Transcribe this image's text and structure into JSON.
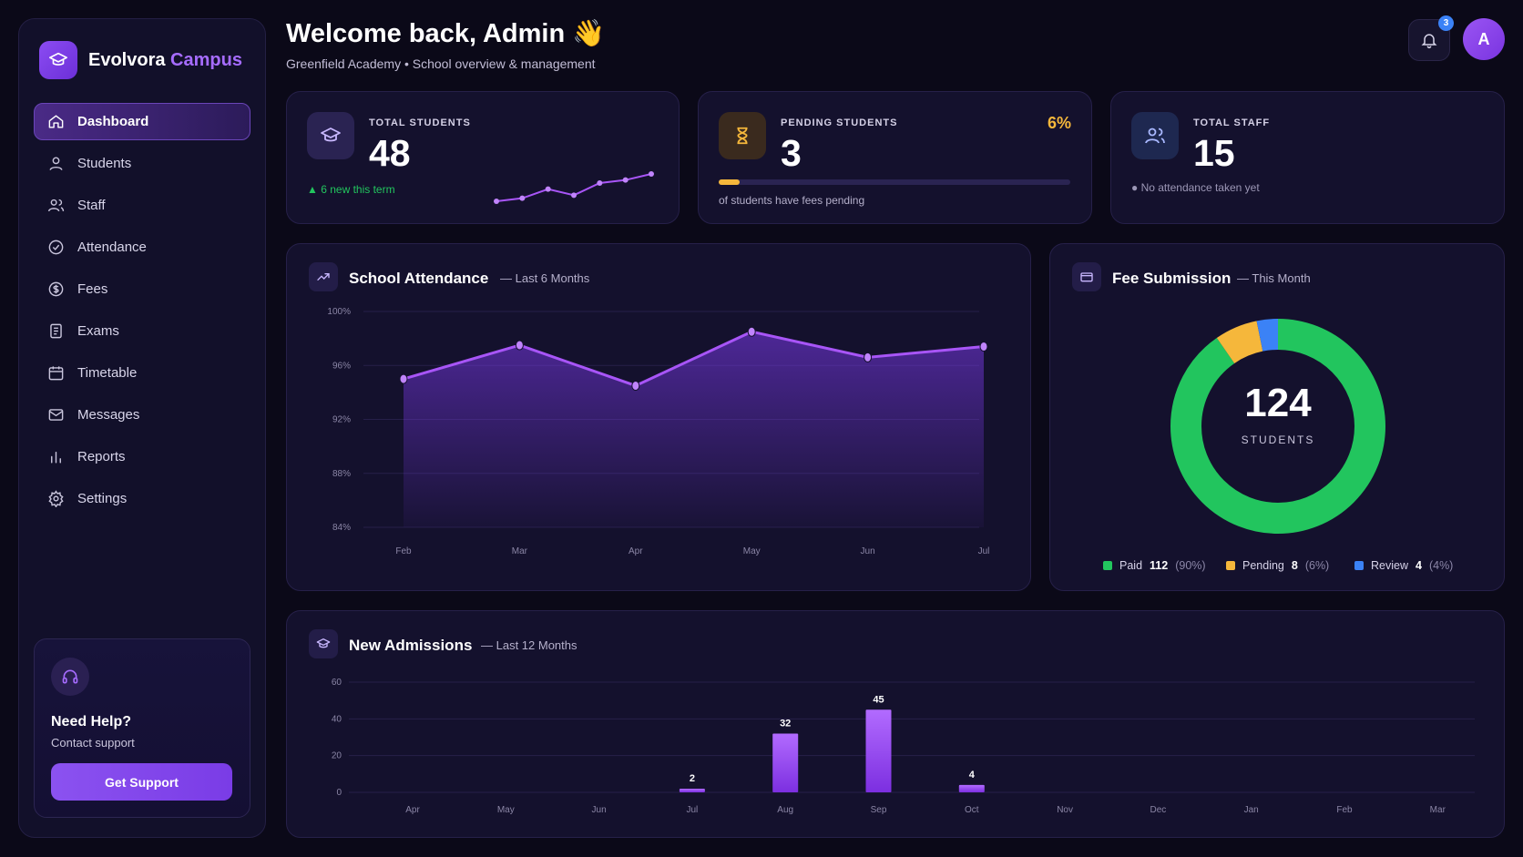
{
  "brand": {
    "name": "Evolvora",
    "accent": "Campus"
  },
  "sidebar": {
    "items": [
      {
        "label": "Dashboard",
        "icon": "home-icon",
        "active": true
      },
      {
        "label": "Students",
        "icon": "user-icon"
      },
      {
        "label": "Staff",
        "icon": "users-icon"
      },
      {
        "label": "Attendance",
        "icon": "check-circle-icon"
      },
      {
        "label": "Fees",
        "icon": "dollar-icon"
      },
      {
        "label": "Exams",
        "icon": "document-icon"
      },
      {
        "label": "Timetable",
        "icon": "calendar-icon"
      },
      {
        "label": "Messages",
        "icon": "mail-icon"
      },
      {
        "label": "Reports",
        "icon": "bar-chart-icon"
      },
      {
        "label": "Settings",
        "icon": "gear-icon"
      }
    ],
    "help": {
      "title": "Need Help?",
      "subtitle": "Contact support",
      "button": "Get Support"
    }
  },
  "header": {
    "welcome": "Welcome back, Admin",
    "emoji": "👋",
    "subtitle": "Greenfield Academy • School overview & management",
    "notifications": "3",
    "avatar": "A"
  },
  "stats": {
    "students": {
      "label": "TOTAL STUDENTS",
      "value": "48",
      "note": "▲ 6 new this term",
      "trend": [
        2,
        3,
        6,
        4,
        8,
        9,
        11
      ]
    },
    "pending": {
      "label": "PENDING STUDENTS",
      "value": "3",
      "percent": "6%",
      "progress": 0.06,
      "note": "of students have fees pending"
    },
    "staff": {
      "label": "TOTAL STAFF",
      "value": "15",
      "note": "● No attendance taken yet"
    }
  },
  "attendance": {
    "title": "School Attendance",
    "subtitle": "— Last 6 Months",
    "chart_data": {
      "type": "area",
      "x": [
        "Feb",
        "Mar",
        "Apr",
        "May",
        "Jun",
        "Jul"
      ],
      "y": [
        95.0,
        97.5,
        94.5,
        98.5,
        96.6,
        97.4
      ],
      "ylim": [
        84,
        100
      ],
      "yticks": [
        "100%",
        "96%",
        "92%",
        "88%",
        "84%"
      ],
      "color": "#a855f7"
    }
  },
  "fees": {
    "title": "Fee Submission",
    "subtitle": "— This Month",
    "total": "124",
    "total_label": "STUDENTS",
    "chart_data": {
      "type": "pie",
      "labels": [
        "Paid",
        "Pending",
        "Review"
      ],
      "values": [
        112,
        8,
        4
      ],
      "colors": [
        "#22c55e",
        "#f5b73b",
        "#3b82f6"
      ],
      "percents": [
        "(90%)",
        "(6%)",
        "(4%)"
      ]
    }
  },
  "admissions": {
    "title": "New Admissions",
    "subtitle": "— Last 12 Months",
    "chart_data": {
      "type": "bar",
      "categories": [
        "Apr",
        "May",
        "Jun",
        "Jul",
        "Aug",
        "Sep",
        "Oct",
        "Nov",
        "Dec",
        "Jan",
        "Feb",
        "Mar"
      ],
      "values": [
        0,
        0,
        0,
        2,
        32,
        45,
        4,
        0,
        0,
        0,
        0,
        0
      ],
      "ylim": [
        0,
        60
      ],
      "yticks": [
        "60",
        "40",
        "20",
        "0"
      ],
      "color": "#9b4df0"
    }
  }
}
